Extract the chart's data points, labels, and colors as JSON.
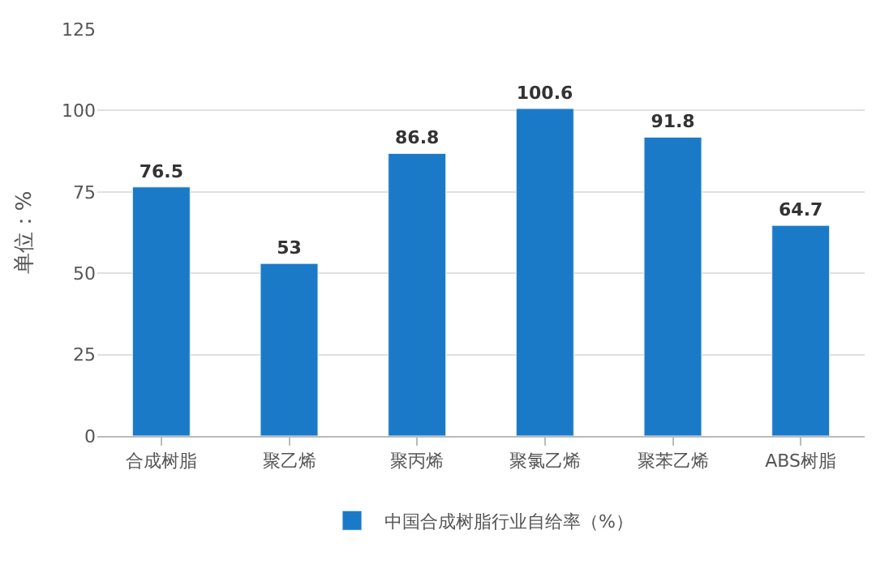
{
  "chart_data": {
    "type": "bar",
    "ylabel": "单位：%",
    "categories": [
      "合成树脂",
      "聚乙烯",
      "聚丙烯",
      "聚氯乙烯",
      "聚苯乙烯",
      "ABS树脂"
    ],
    "series": [
      {
        "name": "中国合成树脂行业自给率（%）",
        "color": "#1a7ac8",
        "values": [
          76.5,
          53,
          86.8,
          100.6,
          91.8,
          64.7
        ]
      }
    ],
    "ylim": [
      0,
      125
    ],
    "yticks": [
      0,
      25,
      50,
      75,
      100,
      125
    ],
    "grid": "y",
    "legend": "bottom",
    "data_labels": true
  }
}
